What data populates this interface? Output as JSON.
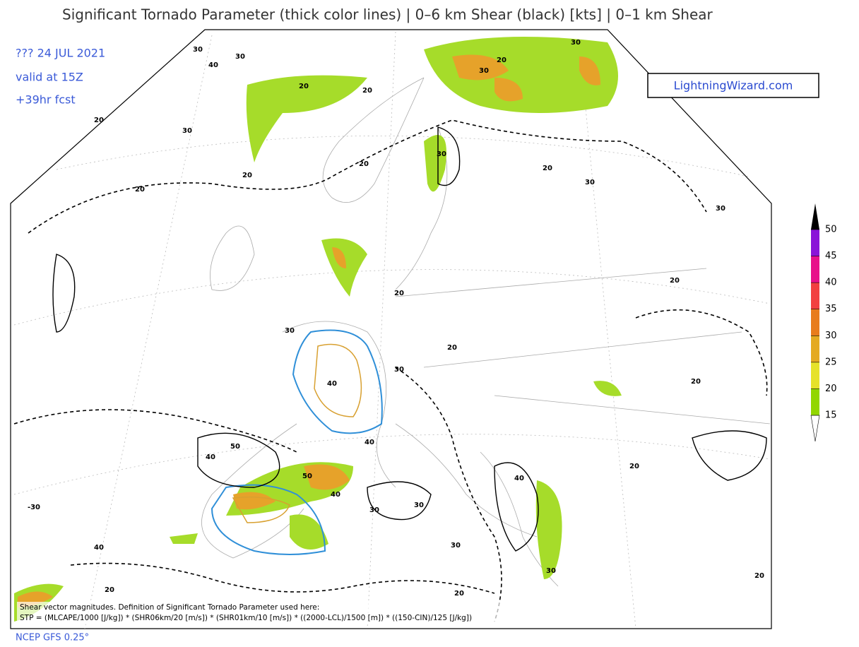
{
  "header": {
    "title": "Significant Tornado Parameter (thick color lines) | 0–6 km Shear (black) [kts] | 0–1 km Shear"
  },
  "run_info": [
    "??? 24 JUL 2021",
    "valid at 15Z",
    "+39hr fcst"
  ],
  "logo": "LightningWizard.com",
  "colorbar": {
    "ticks": [
      15,
      20,
      25,
      30,
      35,
      40,
      45,
      50
    ],
    "band_colors": [
      "#92d600",
      "#e6e22a",
      "#e4aa22",
      "#e87c1c",
      "#f24040",
      "#e8108a",
      "#8a14d8"
    ]
  },
  "contour_labels": [
    "30",
    "40",
    "30",
    "20",
    "20",
    "20",
    "30",
    "20",
    "20",
    "30",
    "20",
    "30",
    "30",
    "20",
    "20",
    "30",
    "30",
    "20",
    "30",
    "20",
    "40",
    "50",
    "40",
    "50",
    "40",
    "30",
    "40",
    "30",
    "-30",
    "40",
    "20",
    "30",
    "20",
    "30",
    "40",
    "30",
    "20",
    "20",
    "20",
    "20"
  ],
  "footnote": [
    "Shear vector magnitudes. Definition of Significant Tornado Parameter used here:",
    "STP = (MLCAPE/1000 [J/kg]) * (SHR06km/20 [m/s]) * (SHR01km/10 [m/s]) * ((2000-LCL)/1500 [m]) * ((150-CIN)/125 [J/kg])"
  ],
  "source": "NCEP GFS 0.25°"
}
